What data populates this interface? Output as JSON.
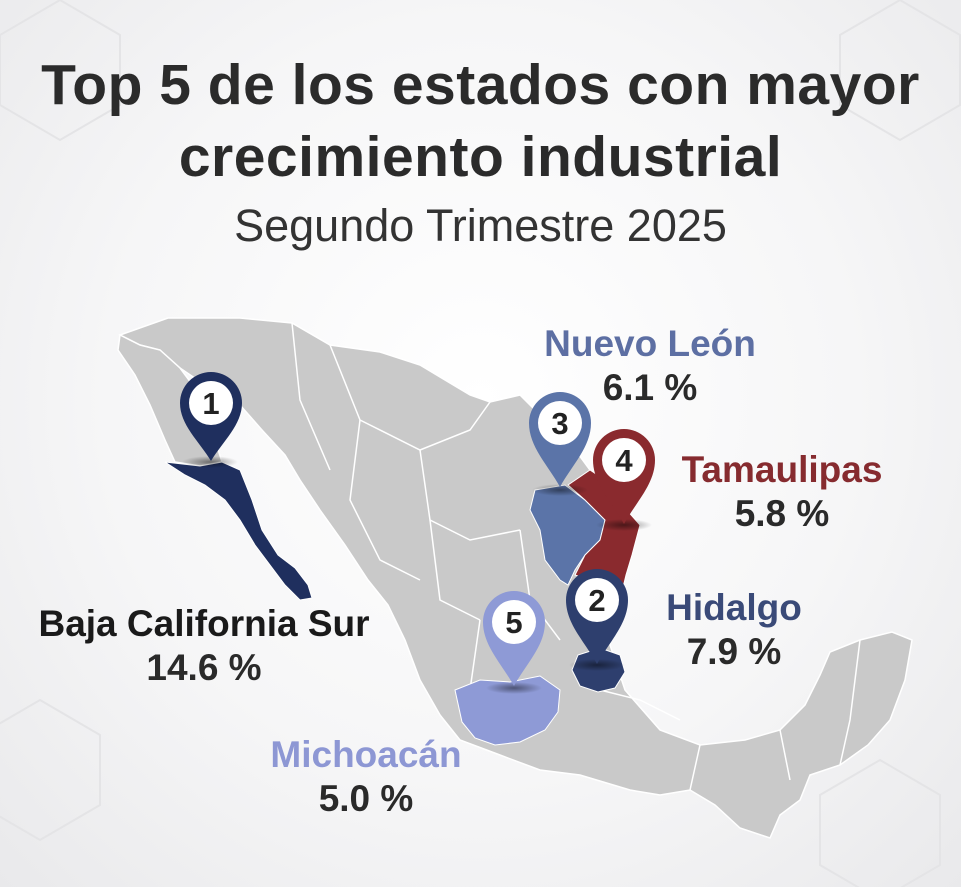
{
  "header": {
    "title_line1": "Top 5 de los estados con mayor",
    "title_line2": "crecimiento industrial",
    "subtitle": "Segundo Trimestre 2025"
  },
  "map": {
    "country_color": "#c9c9c9",
    "states": [
      {
        "rank": "1",
        "name": "Baja California Sur",
        "value": "14.6 %",
        "color": "#1f2f5e",
        "name_color": "#1a1a1a"
      },
      {
        "rank": "2",
        "name": "Hidalgo",
        "value": "7.9 %",
        "color": "#2e3f6e",
        "name_color": "#3a4a78"
      },
      {
        "rank": "3",
        "name": "Nuevo León",
        "value": "6.1 %",
        "color": "#5b74a8",
        "name_color": "#5d6fa3"
      },
      {
        "rank": "4",
        "name": "Tamaulipas",
        "value": "5.8 %",
        "color": "#8a2a2e",
        "name_color": "#862b2f"
      },
      {
        "rank": "5",
        "name": "Michoacán",
        "value": "5.0 %",
        "color": "#8e9ad6",
        "name_color": "#8d97d4"
      }
    ]
  }
}
